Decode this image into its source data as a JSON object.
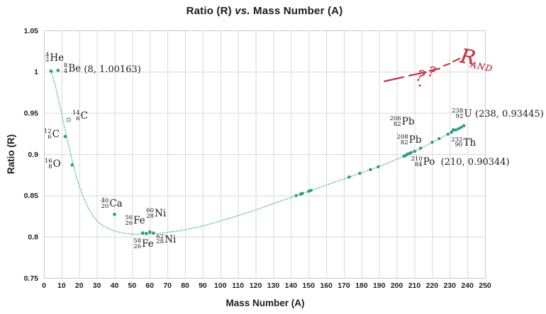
{
  "title": {
    "part1": "Ratio (R) ",
    "vs": "vs.",
    "part2": " Mass Number (A)"
  },
  "chart_data": {
    "type": "scatter",
    "title": "Ratio (R) vs. Mass Number (A)",
    "xlabel": "Mass Number (A)",
    "ylabel": "Ratio (R)",
    "xlim": [
      0,
      250
    ],
    "ylim": [
      0.75,
      1.05
    ],
    "xticks": [
      0,
      10,
      20,
      30,
      40,
      50,
      60,
      70,
      80,
      90,
      100,
      110,
      120,
      130,
      140,
      150,
      160,
      170,
      180,
      190,
      200,
      210,
      220,
      230,
      240,
      250
    ],
    "ytick_labels": [
      "1.05",
      "1",
      "0.95",
      "0.9",
      "0.85",
      "0.8",
      "0.75"
    ],
    "ytick_values": [
      1.05,
      1.0,
      0.95,
      0.9,
      0.85,
      0.8,
      0.75
    ],
    "grid": true,
    "legend": false,
    "colors": {
      "marker": "#2E9B7D",
      "curve": "#53B49A",
      "grid": "#D9D9D9",
      "border": "#C9C9C9",
      "text": "#1F1F1F",
      "annotation": "#C03A4C"
    },
    "labeled_points": [
      {
        "a": 4,
        "r": 1.0007,
        "mass": "4",
        "z": "2",
        "sym": "He",
        "suffix": "",
        "open": false,
        "lx": -8,
        "ly": -26
      },
      {
        "a": 8,
        "r": 1.00163,
        "mass": "8",
        "z": "4",
        "sym": "Be",
        "suffix": " (8, 1.00163)",
        "open": false,
        "lx": 8,
        "ly": -9
      },
      {
        "a": 12,
        "r": 0.9214,
        "mass": "12",
        "z": "6",
        "sym": "C",
        "suffix": "",
        "open": false,
        "lx": -30,
        "ly": -10
      },
      {
        "a": 14,
        "r": 0.9417,
        "mass": "14",
        "z": "6",
        "sym": "C",
        "suffix": "",
        "open": true,
        "lx": 5,
        "ly": -12
      },
      {
        "a": 16,
        "r": 0.887,
        "mass": "16",
        "z": "8",
        "sym": "O",
        "suffix": "",
        "open": false,
        "lx": -39,
        "ly": -8
      },
      {
        "a": 40,
        "r": 0.827,
        "mass": "40",
        "z": "20",
        "sym": "Ca",
        "suffix": "",
        "open": false,
        "lx": -19,
        "ly": -22
      },
      {
        "a": 56,
        "r": 0.8045,
        "mass": "56",
        "z": "26",
        "sym": "Fe",
        "suffix": "",
        "open": false,
        "lx": -25,
        "ly": -24
      },
      {
        "a": 60,
        "r": 0.8056,
        "mass": "60",
        "z": "28",
        "sym": "Ni",
        "suffix": "",
        "open": false,
        "lx": -5,
        "ly": -33
      },
      {
        "a": 58,
        "r": 0.8038,
        "mass": "58",
        "z": "26",
        "sym": "Fe",
        "suffix": "",
        "open": false,
        "lx": -18,
        "ly": 8
      },
      {
        "a": 62,
        "r": 0.8043,
        "mass": "62",
        "z": "28",
        "sym": "Ni",
        "suffix": "",
        "open": false,
        "lx": 4,
        "ly": 2
      },
      {
        "a": 206,
        "r": 0.8999,
        "mass": "206",
        "z": "82",
        "sym": "Pb",
        "suffix": "",
        "open": false,
        "lx": -25,
        "ly": -53
      },
      {
        "a": 208,
        "r": 0.9018,
        "mass": "208",
        "z": "82",
        "sym": "Pb",
        "suffix": "",
        "open": false,
        "lx": -20,
        "ly": -25
      },
      {
        "a": 210,
        "r": 0.90344,
        "mass": "210",
        "z": "84",
        "sym": "Po",
        "suffix": "  (210, 0.90344)",
        "open": false,
        "lx": -5,
        "ly": 8
      },
      {
        "a": 232,
        "r": 0.9295,
        "mass": "232",
        "z": "90",
        "sym": "Th",
        "suffix": "",
        "open": false,
        "lx": -3,
        "ly": 11
      },
      {
        "a": 238,
        "r": 0.93445,
        "mass": "238",
        "z": "92",
        "sym": "U",
        "suffix": " (238, 0.93445)",
        "open": false,
        "lx": -17,
        "ly": -24
      }
    ],
    "unlabeled_points": [
      [
        143,
        0.8498
      ],
      [
        145.5,
        0.8517
      ],
      [
        146.5,
        0.8524
      ],
      [
        150,
        0.855
      ],
      [
        151.3,
        0.856
      ],
      [
        173,
        0.8723
      ],
      [
        179,
        0.8768
      ],
      [
        185,
        0.8813
      ],
      [
        189.5,
        0.8847
      ],
      [
        204,
        0.8975
      ],
      [
        205,
        0.8985
      ],
      [
        207,
        0.9006
      ],
      [
        213.5,
        0.9072
      ],
      [
        220,
        0.9144
      ],
      [
        224,
        0.9188
      ],
      [
        229,
        0.9243
      ],
      [
        231,
        0.9265
      ],
      [
        233.5,
        0.9293
      ],
      [
        235,
        0.9309
      ],
      [
        236.5,
        0.9325
      ]
    ],
    "trend_curve": {
      "style": "dotted",
      "control_points": [
        [
          4,
          1.0007
        ],
        [
          6,
          0.9865
        ],
        [
          8,
          0.9685
        ],
        [
          10,
          0.949
        ],
        [
          12,
          0.9295
        ],
        [
          14,
          0.9105
        ],
        [
          16,
          0.8925
        ],
        [
          18,
          0.876
        ],
        [
          20,
          0.8615
        ],
        [
          23,
          0.8445
        ],
        [
          26,
          0.8315
        ],
        [
          29,
          0.822
        ],
        [
          32,
          0.8155
        ],
        [
          36,
          0.8105
        ],
        [
          40,
          0.807
        ],
        [
          45,
          0.8045
        ],
        [
          50,
          0.8032
        ],
        [
          55,
          0.8028
        ],
        [
          60,
          0.8032
        ],
        [
          66,
          0.8042
        ],
        [
          72,
          0.8058
        ],
        [
          80,
          0.8085
        ],
        [
          90,
          0.813
        ],
        [
          100,
          0.819
        ],
        [
          110,
          0.8255
        ],
        [
          120,
          0.8325
        ],
        [
          130,
          0.84
        ],
        [
          140,
          0.8475
        ],
        [
          150,
          0.855
        ],
        [
          160,
          0.8625
        ],
        [
          170,
          0.87
        ],
        [
          180,
          0.8775
        ],
        [
          190,
          0.885
        ],
        [
          200,
          0.894
        ],
        [
          210,
          0.9034
        ],
        [
          216,
          0.9098
        ],
        [
          222,
          0.9166
        ],
        [
          228,
          0.9232
        ],
        [
          233,
          0.9287
        ],
        [
          238,
          0.9345
        ]
      ]
    },
    "annotation_red": {
      "main_text": "R",
      "sub_text": "AND",
      "question_marks": [
        "?",
        "?"
      ],
      "dashes": [
        [
          542,
          115,
          569,
          109
        ],
        [
          577,
          107,
          601,
          102
        ],
        [
          606,
          100,
          620,
          97
        ],
        [
          626,
          93,
          634,
          90
        ],
        [
          639,
          87,
          648,
          83
        ]
      ],
      "qmark_pos": [
        {
          "x": 586,
          "y": 113,
          "fs": 21,
          "rot": 14
        },
        {
          "x": 603,
          "y": 107,
          "fs": 19,
          "rot": 10
        }
      ],
      "dot": [
        592,
        121
      ],
      "main_pos": {
        "x": 648,
        "y": 88,
        "fs": 28,
        "rot": 10
      },
      "sub_pos": {
        "x": 663,
        "y": 95,
        "fs": 12,
        "rot": 12
      }
    }
  }
}
